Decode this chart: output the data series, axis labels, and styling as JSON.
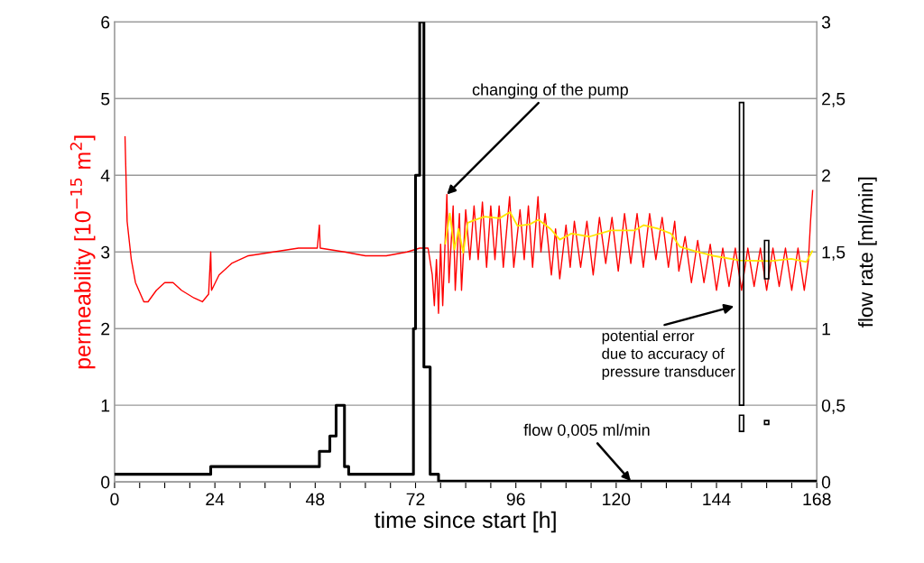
{
  "chart_data": {
    "type": "line",
    "xlabel": "time since start [h]",
    "ylabel": "permeability [10$^{−15}$ m$^{2}$]",
    "y2label": "flow rate [ml/min]",
    "xlim": [
      0,
      168
    ],
    "xticks": [
      0,
      {
        "value": 6,
        "label": null
      },
      {
        "value": 12,
        "label": null
      },
      {
        "value": 18,
        "label": null
      },
      24,
      {
        "value": 30,
        "label": null
      },
      {
        "value": 36,
        "label": null
      },
      {
        "value": 42,
        "label": null
      },
      48,
      {
        "value": 54,
        "label": null
      },
      {
        "value": 60,
        "label": null
      },
      {
        "value": 66,
        "label": null
      },
      72,
      {
        "value": 78,
        "label": null
      },
      {
        "value": 84,
        "label": null
      },
      {
        "value": 90,
        "label": null
      },
      96,
      {
        "value": 102,
        "label": null
      },
      {
        "value": 108,
        "label": null
      },
      {
        "value": 114,
        "label": null
      },
      120,
      {
        "value": 126,
        "label": null
      },
      {
        "value": 132,
        "label": null
      },
      {
        "value": 138,
        "label": null
      },
      144,
      {
        "value": 150,
        "label": null
      },
      {
        "value": 156,
        "label": null
      },
      {
        "value": 162,
        "label": null
      },
      168
    ],
    "ylim": [
      0,
      6
    ],
    "yticks": [
      0,
      1,
      2,
      3,
      4,
      5,
      6
    ],
    "y2lim": [
      0,
      3
    ],
    "y2ticks": [
      0,
      {
        "value": 0.5,
        "label": "0,5"
      },
      1,
      {
        "value": 1.5,
        "label": "1,5"
      },
      2,
      {
        "value": 2.5,
        "label": "2,5"
      },
      3
    ],
    "grid": "y",
    "legend": false,
    "marker": "none",
    "line_style": "solid",
    "series": [
      {
        "color": "#ff0000",
        "x": [
          2.5,
          3,
          4,
          5,
          7,
          8,
          10,
          12,
          14,
          16,
          19,
          21,
          22.5,
          23,
          23.2,
          25,
          28,
          32,
          38,
          44,
          48.5,
          49,
          49.2,
          55,
          60,
          65,
          70,
          73,
          75,
          76,
          76.5,
          77,
          77.5,
          78,
          78.5,
          79.5,
          80,
          81,
          81.5,
          82.5,
          83,
          84,
          85,
          86,
          87,
          88,
          89,
          90,
          91,
          92,
          93,
          94.5,
          95.5,
          97,
          98,
          99,
          100,
          101.3,
          102,
          103,
          104.5,
          105.5,
          106.5,
          108,
          109,
          110,
          111.5,
          113,
          114.5,
          116,
          117.5,
          119,
          120.5,
          122,
          123.5,
          125,
          126.5,
          128,
          129.5,
          131,
          132.5,
          134,
          135,
          136.5,
          138,
          139.5,
          141,
          142.5,
          144,
          145.5,
          147,
          148.5,
          150,
          151.5,
          153,
          154.5,
          156,
          157.5,
          159,
          160.5,
          162,
          163.5,
          165,
          166,
          166.5,
          167
        ],
        "values": [
          4.5,
          3.4,
          2.9,
          2.6,
          2.35,
          2.35,
          2.5,
          2.6,
          2.6,
          2.5,
          2.4,
          2.35,
          2.45,
          3.0,
          2.5,
          2.7,
          2.85,
          2.95,
          3.0,
          3.05,
          3.05,
          3.35,
          3.05,
          3.0,
          2.95,
          2.95,
          3.0,
          3.05,
          3.05,
          2.7,
          2.3,
          2.9,
          2.2,
          3.1,
          2.3,
          3.75,
          2.6,
          3.6,
          2.5,
          3.5,
          2.5,
          3.55,
          2.9,
          3.6,
          2.9,
          3.65,
          2.8,
          3.6,
          2.9,
          3.6,
          2.8,
          3.72,
          2.8,
          3.55,
          2.9,
          3.6,
          2.8,
          3.72,
          3.0,
          3.5,
          2.7,
          3.3,
          2.65,
          3.35,
          2.8,
          3.4,
          2.8,
          3.4,
          2.7,
          3.45,
          2.85,
          3.45,
          2.75,
          3.5,
          2.85,
          3.5,
          2.8,
          3.5,
          2.9,
          3.45,
          2.8,
          3.4,
          2.75,
          3.2,
          2.6,
          3.15,
          2.6,
          3.1,
          2.5,
          3.05,
          2.55,
          3.05,
          2.5,
          3.05,
          2.55,
          3.05,
          2.5,
          3.05,
          2.55,
          3.05,
          2.5,
          3.05,
          2.5,
          2.9,
          3.4,
          3.8
        ]
      },
      {
        "color": "#ffe600",
        "x": [
          79.1,
          80.2,
          81.3,
          82.3,
          83.4,
          84.5,
          86.3,
          88.5,
          92.1,
          94.6,
          96.4,
          99.3,
          101.4,
          104.3,
          106.5,
          109.3,
          113.6,
          118.7,
          124.4,
          126.6,
          130.2,
          133.1,
          135.2,
          138.8,
          143.2,
          149.6,
          156.8,
          161.9,
          165.5,
          166.9
        ],
        "values": [
          3.11,
          3.5,
          3.03,
          3.3,
          2.99,
          3.38,
          3.42,
          3.46,
          3.44,
          3.52,
          3.34,
          3.36,
          3.42,
          3.3,
          3.16,
          3.24,
          3.2,
          3.28,
          3.28,
          3.35,
          3.3,
          3.24,
          3.07,
          3.01,
          2.95,
          2.89,
          2.88,
          2.91,
          2.87,
          3.01
        ]
      },
      {
        "type": "step",
        "color": "#000000",
        "axis": "y2",
        "x": [
          0,
          23,
          49,
          51.5,
          53,
          55,
          56,
          71.5,
          72,
          73,
          74,
          75.5,
          77.5,
          168
        ],
        "values": [
          0.05,
          0.1,
          0.2,
          0.3,
          0.5,
          0.1,
          0.05,
          1.0,
          2.0,
          3.0,
          0.75,
          0.05,
          0.005,
          0.005
        ]
      },
      {
        "type": "bar",
        "color": "#000000",
        "x": [
          150,
          156
        ],
        "base": [
          1.0,
          2.65
        ],
        "values": [
          3.95,
          0.5
        ]
      },
      {
        "type": "bar",
        "color": "#000000",
        "x": [
          150,
          156
        ],
        "base": [
          0.66,
          0.75
        ],
        "values": [
          0.21,
          0.05
        ]
      }
    ],
    "annotations": [
      {
        "text": "changing of the pump",
        "x": 79.5,
        "y": 3.75
      },
      "potential error\ndue to accuracy of\npressure transducer",
      {
        "text": "flow 0,005 ml/min",
        "x": 123.5,
        "y": 0.01
      }
    ]
  }
}
